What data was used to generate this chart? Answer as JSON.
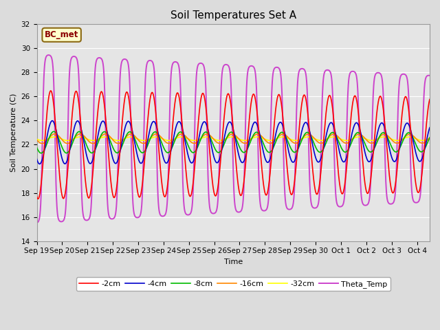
{
  "title": "Soil Temperatures Set A",
  "xlabel": "Time",
  "ylabel": "Soil Temperature (C)",
  "ylim": [
    14,
    32
  ],
  "yticks": [
    14,
    16,
    18,
    20,
    22,
    24,
    26,
    28,
    30,
    32
  ],
  "x_tick_labels": [
    "Sep 19",
    "Sep 20",
    "Sep 21",
    "Sep 22",
    "Sep 23",
    "Sep 24",
    "Sep 25",
    "Sep 26",
    "Sep 27",
    "Sep 28",
    "Sep 29",
    "Sep 30",
    "Oct 1",
    "Oct 2",
    "Oct 3",
    "Oct 4"
  ],
  "annotation_text": "BC_met",
  "series_colors": [
    "#FF0000",
    "#0000CC",
    "#00BB00",
    "#FF8800",
    "#FFFF00",
    "#CC44CC"
  ],
  "series_labels": [
    "-2cm",
    "-4cm",
    "-8cm",
    "-16cm",
    "-32cm",
    "Theta_Temp"
  ],
  "background_color": "#E5E5E5",
  "grid_color": "#FFFFFF",
  "title_fontsize": 11,
  "axis_fontsize": 8,
  "tick_fontsize": 7.5,
  "legend_fontsize": 8,
  "linewidth": 1.2
}
